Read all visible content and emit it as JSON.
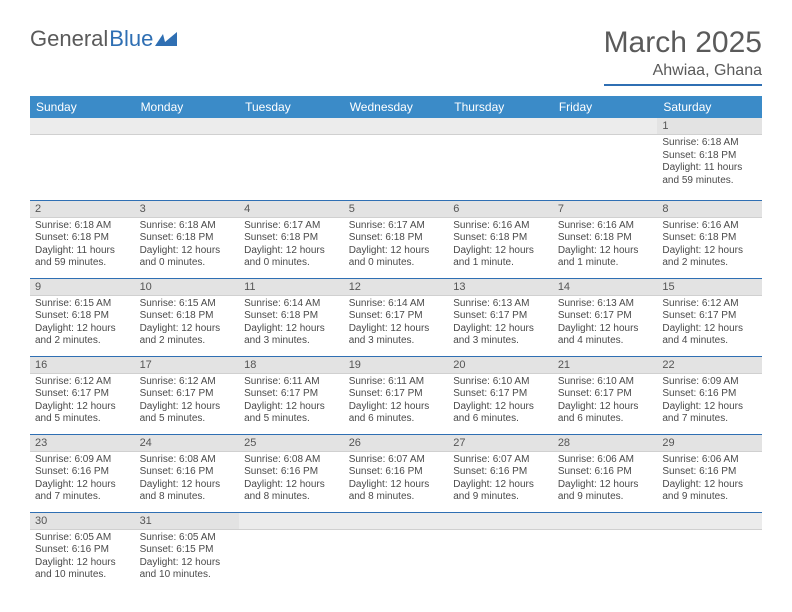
{
  "logo": {
    "text1": "General",
    "text2": "Blue"
  },
  "title": "March 2025",
  "subtitle": "Ahwiaa, Ghana",
  "colors": {
    "header_bg": "#3b8bc8",
    "header_text": "#ffffff",
    "rule": "#2f6fb3",
    "daynum_bg": "#e3e3e3",
    "text": "#4a4a4a"
  },
  "weekdays": [
    "Sunday",
    "Monday",
    "Tuesday",
    "Wednesday",
    "Thursday",
    "Friday",
    "Saturday"
  ],
  "weeks": [
    [
      null,
      null,
      null,
      null,
      null,
      null,
      {
        "n": "1",
        "sr": "Sunrise: 6:18 AM",
        "ss": "Sunset: 6:18 PM",
        "dl": "Daylight: 11 hours and 59 minutes."
      }
    ],
    [
      {
        "n": "2",
        "sr": "Sunrise: 6:18 AM",
        "ss": "Sunset: 6:18 PM",
        "dl": "Daylight: 11 hours and 59 minutes."
      },
      {
        "n": "3",
        "sr": "Sunrise: 6:18 AM",
        "ss": "Sunset: 6:18 PM",
        "dl": "Daylight: 12 hours and 0 minutes."
      },
      {
        "n": "4",
        "sr": "Sunrise: 6:17 AM",
        "ss": "Sunset: 6:18 PM",
        "dl": "Daylight: 12 hours and 0 minutes."
      },
      {
        "n": "5",
        "sr": "Sunrise: 6:17 AM",
        "ss": "Sunset: 6:18 PM",
        "dl": "Daylight: 12 hours and 0 minutes."
      },
      {
        "n": "6",
        "sr": "Sunrise: 6:16 AM",
        "ss": "Sunset: 6:18 PM",
        "dl": "Daylight: 12 hours and 1 minute."
      },
      {
        "n": "7",
        "sr": "Sunrise: 6:16 AM",
        "ss": "Sunset: 6:18 PM",
        "dl": "Daylight: 12 hours and 1 minute."
      },
      {
        "n": "8",
        "sr": "Sunrise: 6:16 AM",
        "ss": "Sunset: 6:18 PM",
        "dl": "Daylight: 12 hours and 2 minutes."
      }
    ],
    [
      {
        "n": "9",
        "sr": "Sunrise: 6:15 AM",
        "ss": "Sunset: 6:18 PM",
        "dl": "Daylight: 12 hours and 2 minutes."
      },
      {
        "n": "10",
        "sr": "Sunrise: 6:15 AM",
        "ss": "Sunset: 6:18 PM",
        "dl": "Daylight: 12 hours and 2 minutes."
      },
      {
        "n": "11",
        "sr": "Sunrise: 6:14 AM",
        "ss": "Sunset: 6:18 PM",
        "dl": "Daylight: 12 hours and 3 minutes."
      },
      {
        "n": "12",
        "sr": "Sunrise: 6:14 AM",
        "ss": "Sunset: 6:17 PM",
        "dl": "Daylight: 12 hours and 3 minutes."
      },
      {
        "n": "13",
        "sr": "Sunrise: 6:13 AM",
        "ss": "Sunset: 6:17 PM",
        "dl": "Daylight: 12 hours and 3 minutes."
      },
      {
        "n": "14",
        "sr": "Sunrise: 6:13 AM",
        "ss": "Sunset: 6:17 PM",
        "dl": "Daylight: 12 hours and 4 minutes."
      },
      {
        "n": "15",
        "sr": "Sunrise: 6:12 AM",
        "ss": "Sunset: 6:17 PM",
        "dl": "Daylight: 12 hours and 4 minutes."
      }
    ],
    [
      {
        "n": "16",
        "sr": "Sunrise: 6:12 AM",
        "ss": "Sunset: 6:17 PM",
        "dl": "Daylight: 12 hours and 5 minutes."
      },
      {
        "n": "17",
        "sr": "Sunrise: 6:12 AM",
        "ss": "Sunset: 6:17 PM",
        "dl": "Daylight: 12 hours and 5 minutes."
      },
      {
        "n": "18",
        "sr": "Sunrise: 6:11 AM",
        "ss": "Sunset: 6:17 PM",
        "dl": "Daylight: 12 hours and 5 minutes."
      },
      {
        "n": "19",
        "sr": "Sunrise: 6:11 AM",
        "ss": "Sunset: 6:17 PM",
        "dl": "Daylight: 12 hours and 6 minutes."
      },
      {
        "n": "20",
        "sr": "Sunrise: 6:10 AM",
        "ss": "Sunset: 6:17 PM",
        "dl": "Daylight: 12 hours and 6 minutes."
      },
      {
        "n": "21",
        "sr": "Sunrise: 6:10 AM",
        "ss": "Sunset: 6:17 PM",
        "dl": "Daylight: 12 hours and 6 minutes."
      },
      {
        "n": "22",
        "sr": "Sunrise: 6:09 AM",
        "ss": "Sunset: 6:16 PM",
        "dl": "Daylight: 12 hours and 7 minutes."
      }
    ],
    [
      {
        "n": "23",
        "sr": "Sunrise: 6:09 AM",
        "ss": "Sunset: 6:16 PM",
        "dl": "Daylight: 12 hours and 7 minutes."
      },
      {
        "n": "24",
        "sr": "Sunrise: 6:08 AM",
        "ss": "Sunset: 6:16 PM",
        "dl": "Daylight: 12 hours and 8 minutes."
      },
      {
        "n": "25",
        "sr": "Sunrise: 6:08 AM",
        "ss": "Sunset: 6:16 PM",
        "dl": "Daylight: 12 hours and 8 minutes."
      },
      {
        "n": "26",
        "sr": "Sunrise: 6:07 AM",
        "ss": "Sunset: 6:16 PM",
        "dl": "Daylight: 12 hours and 8 minutes."
      },
      {
        "n": "27",
        "sr": "Sunrise: 6:07 AM",
        "ss": "Sunset: 6:16 PM",
        "dl": "Daylight: 12 hours and 9 minutes."
      },
      {
        "n": "28",
        "sr": "Sunrise: 6:06 AM",
        "ss": "Sunset: 6:16 PM",
        "dl": "Daylight: 12 hours and 9 minutes."
      },
      {
        "n": "29",
        "sr": "Sunrise: 6:06 AM",
        "ss": "Sunset: 6:16 PM",
        "dl": "Daylight: 12 hours and 9 minutes."
      }
    ],
    [
      {
        "n": "30",
        "sr": "Sunrise: 6:05 AM",
        "ss": "Sunset: 6:16 PM",
        "dl": "Daylight: 12 hours and 10 minutes."
      },
      {
        "n": "31",
        "sr": "Sunrise: 6:05 AM",
        "ss": "Sunset: 6:15 PM",
        "dl": "Daylight: 12 hours and 10 minutes."
      },
      null,
      null,
      null,
      null,
      null
    ]
  ]
}
